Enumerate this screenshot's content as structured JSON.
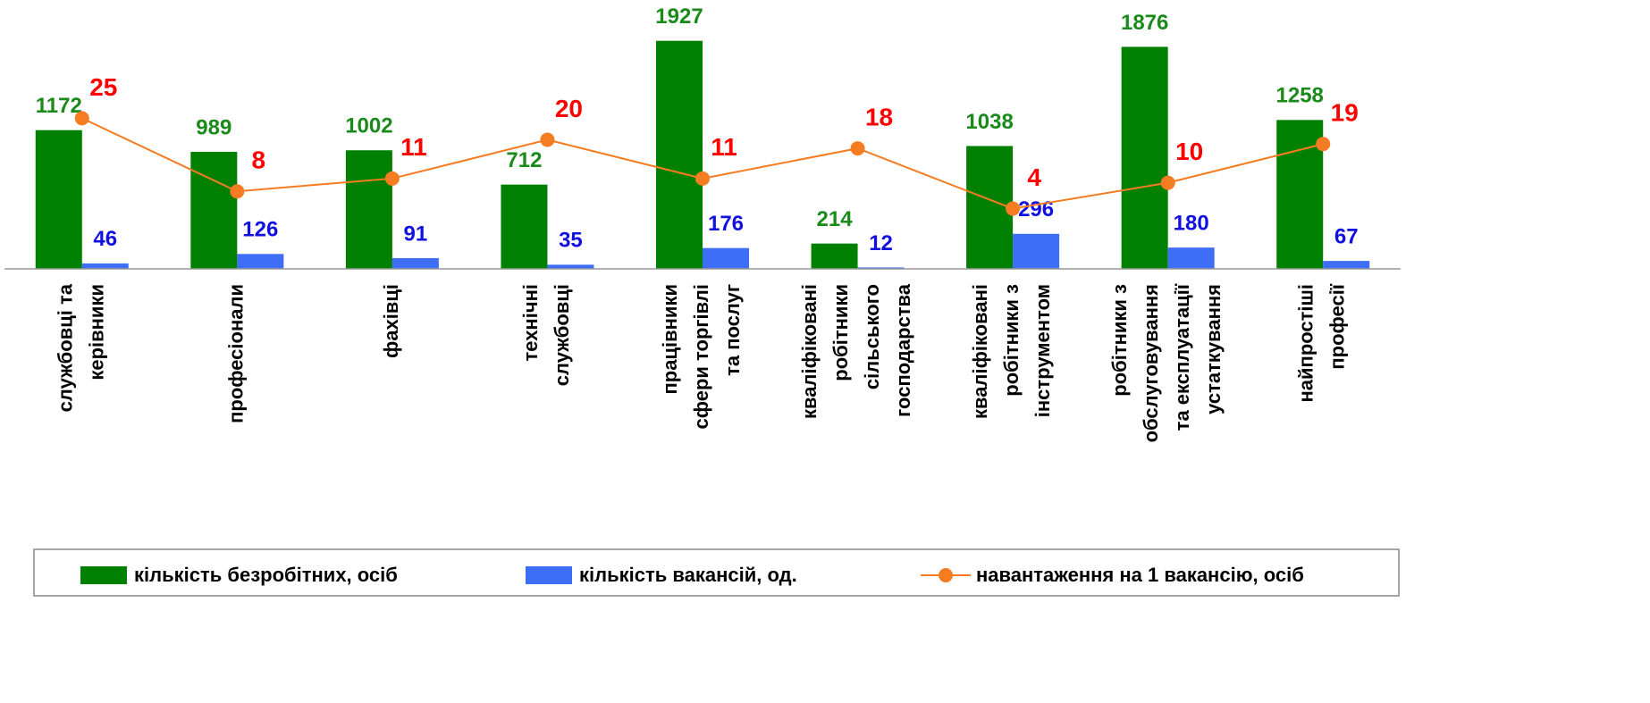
{
  "chart_data": {
    "type": "bar",
    "categories": [
      "службовці та\nкерівники",
      "професіонали",
      "фахівці",
      "технічні\nслужбовці",
      "працівники\nсфери торгівлі\nта послуг",
      "кваліфіковані\nробітники\nсільського\nгосподарства",
      "кваліфіковані\nробітники з\nінструментом",
      "робітники з\nобслуговування\nта експлуатації\nустаткування",
      "найпростіші\nпрофесії"
    ],
    "series": [
      {
        "name": "кількість безробітних, осіб",
        "type": "bar",
        "color": "#008000",
        "label_color": "#1a8a1a",
        "values": [
          1172,
          989,
          1002,
          712,
          1927,
          214,
          1038,
          1876,
          1258
        ]
      },
      {
        "name": "кількість вакансій, од.",
        "type": "bar",
        "color": "#3d6ef5",
        "label_color": "#1010e0",
        "values": [
          46,
          126,
          91,
          35,
          176,
          12,
          296,
          180,
          67
        ]
      },
      {
        "name": "навантаження на 1 вакансію, осіб",
        "type": "line",
        "axis": "y2",
        "color": "#f57c20",
        "label_color": "#ff0000",
        "values": [
          25,
          8,
          11,
          20,
          11,
          18,
          4,
          10,
          19
        ]
      }
    ],
    "ylim": [
      0,
      2000
    ],
    "y2lim": [
      -10,
      45
    ],
    "legend": "bottom"
  }
}
